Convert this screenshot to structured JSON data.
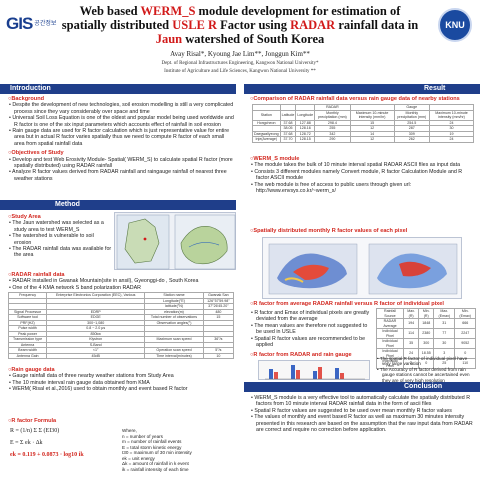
{
  "header": {
    "logo_left_text": "GIS",
    "logo_left_sub": "공간정보",
    "logo_right_text": "KNU",
    "title_prefix": "Web based ",
    "title_highlight_1": "WERM_S",
    "title_mid_1": " module development for estimation of spatially distributed ",
    "title_highlight_2": "USLE R",
    "title_mid_2": " Factor using ",
    "title_highlight_3": "RADAR",
    "title_mid_3": " rainfall data in ",
    "title_highlight_4": "Jaun",
    "title_suffix": " watershed of South Korea",
    "authors": "Avay Risal*, Kyoung Jae Lim**, Jonggun Kim**",
    "affiliation_1": "Dept. of Regional Infrastructures Engineering, Kangwon National University*",
    "affiliation_2": "Institute of Agriculture and Life Sciences, Kangwon National University **"
  },
  "sections": {
    "introduction": "Introduction",
    "method": "Method",
    "result": "Result",
    "conclusion": "Conclusion"
  },
  "intro": {
    "background_head": "Background",
    "background_items": [
      "Despite the development of new technologies, soil erosion modelling is still a very complicated process since they vary considerably over space and time",
      "Universal Soil Loss Equation is one of the oldest and popular model being used worldwide and R factor is one of the six input parameters which accounts effect of rainfall in soil erosion",
      "Rain gauge data are used for R factor calculation which is just representative value for entire area but in actual R factor varies spatially thus we need to compute R factor of each small area from spatial rainfall data"
    ],
    "objectives_head": "Objectives of Study",
    "objectives_items": [
      "Develop and test Web Erosivity Module- Spatial( WERM_S) to calculate spatial R factor (more spatially distributed) using RADAR rainfall",
      "Analyze R factor values derived from RADAR rainfall and raingauge rainfall of nearest three weather stations"
    ]
  },
  "method": {
    "study_area_head": "Study Area",
    "study_area_items": [
      "The Jaun watershed was selected as a study area to test WERM_S",
      "The watershed is vulnerable to soil erosion",
      "The RADAR rainfall data was available for the area"
    ],
    "radar_head": "RADAR rainfall data",
    "radar_items": [
      "RADAR installed in Gwanak Mountain(site in ansil), Gyeonggi-do , South Korea",
      "One of the 4 KMA network S band polarization RADAR"
    ],
    "radar_table": {
      "rows": [
        [
          "Frequency",
          "Enterprise Electronics Corporation (EEC), Various",
          "Station name",
          "Gwanak San"
        ],
        [
          "",
          "",
          "Longitude(°E)",
          "126°57'59.98\""
        ],
        [
          "",
          "",
          "latitude(°N)",
          "37°26'45.20\""
        ],
        [
          "Signal Processor",
          "EDRP",
          "elevation(m)",
          "480"
        ],
        [
          "Software tool",
          "EDGE",
          "Total number of observations",
          "15"
        ],
        [
          "PRF(HZ)",
          "300~1,080",
          "Observation angles(°)",
          ""
        ],
        [
          "Pulse width",
          "0.8 ~ 2.0 μs",
          "",
          ""
        ],
        [
          "Peak power",
          "850kw",
          "",
          ""
        ],
        [
          "Transmission type",
          "Klystron",
          "Maximum scan speed",
          "36°/s"
        ],
        [
          "Antenna",
          "S-Band",
          "",
          ""
        ],
        [
          "Beam width",
          "<1°",
          "Operation scan speed",
          "5°/s"
        ],
        [
          "Antenna Gain",
          "45dB",
          "Time interval(minutes)",
          "10"
        ]
      ]
    },
    "raingauge_head": "Rain gauge data",
    "raingauge_items": [
      "Gauge rainfall data of three nearby weather stations from Study Area",
      "The 10 minute interval rain gauge data obtained from KMA",
      "WERM( Risal et al.,2016) used to obtain monthly and event based R factor"
    ],
    "rfactor_head": "R factor Formula",
    "formula_main": "R = (1/n) Σ Σ (EI30)",
    "formula_e": "E = Σ ek · Δk",
    "formula_ek": "ek = 0.119 + 0.0873 · log10 ik",
    "where_label": "Where,",
    "where_items": [
      "n = number of years",
      "m = number of rainfall events",
      "E = total storm kinetic energy",
      "I30 = maximum of 30 min intensity",
      "ek = unit energy",
      "Δk = amount of rainfall in k event",
      "ik = rainfall intensity of each time"
    ]
  },
  "result": {
    "comparison_head": "Comparison of RADAR rainfall data versus rain gauge data of nearby stations",
    "comparison_table": {
      "headers": [
        "Station",
        "Latitude",
        "Longitude",
        "Monthly precipitation (mm)",
        "Maximum 10-minute intensity (mm/hr)",
        "Monthly precipitation (mm)",
        "Maximum 10-minute intensity (mm/hr)"
      ],
      "group_headers": [
        "",
        "",
        "",
        "RADAR",
        "",
        "Gauge",
        ""
      ],
      "rows": [
        [
          "Hongcheon",
          "37.68",
          "127.88",
          "298.4",
          "15",
          "254.5",
          "24"
        ],
        [
          "",
          "38.05",
          "128.16",
          "255",
          "12",
          "287",
          "30"
        ],
        [
          "Daegwallyeong",
          "37.68",
          "128.72",
          "342",
          "14",
          "309",
          "19"
        ],
        [
          "Inje(Average)",
          "37.70",
          "128.15",
          "290",
          "12",
          "262",
          "24"
        ]
      ]
    },
    "werm_head": "WERM_S module",
    "werm_items": [
      "The module takes the bulk of 10 minute interval spatial RADAR ASCII files as input data",
      "Consists 3 different modules namely Convert module, R factor Calculation Module and R factor ASCII module",
      "The web module is free of access to public users through given url: http://www.envsys.co.kr/~werm_s/"
    ],
    "monthly_head": "Spatially distributed monthly R factor values of each pixel",
    "average_head": "R factor from average RADAR rainfall versus R factor of individual pixel",
    "average_items": [
      "R factor and Emax of individual pixels are greatly deviated from the average",
      "The mean values are therefore not suggested to be used in USLE",
      "Spatial R factor values are recommended to be applied"
    ],
    "rvalue_table": {
      "headers": [
        "Rainfall Source",
        "Max. (R)",
        "Min. (R)",
        "Max. (Emax)",
        "Min. (Emax)"
      ],
      "rows": [
        [
          "RADAR Average",
          "194",
          "1848",
          "31",
          "666"
        ],
        [
          "Individual Pixel",
          "114",
          "2380",
          "77",
          "2247"
        ],
        [
          "Individual Pixel",
          "35",
          "300",
          "30",
          "9052"
        ],
        [
          "Individual Pixel",
          "24",
          "18.55",
          "3",
          "0"
        ],
        [
          "Individual Pixel",
          "2",
          "0",
          "25",
          "110"
        ]
      ]
    },
    "gauge_head": "R factor from RADAR and rain gauge",
    "gauge_items": [
      "The spatial R factor of individual pixel have very large variation",
      "The Accuracy of R factor derived from rain gauge stations cannot be ascertained even they are of very high resolution"
    ]
  },
  "conclusion": {
    "items": [
      "WERM_S module is a very effective tool to automatically calculate the spatially distributed R factors from 10 minute interval RADAR rainfall data in the form of ascii files",
      "Spatial R factor values are suggested to be used over mean monthly R factor values",
      "The values of monthly and event based R factor as well as maximum 30 minutes intensity presented in this research are based on the assumption that the raw input data from RADAR are correct and require no correction before application."
    ]
  },
  "colors": {
    "section_bar": "#1f3e8a",
    "highlight": "#d21a1a",
    "subhead": "#d2261e"
  }
}
